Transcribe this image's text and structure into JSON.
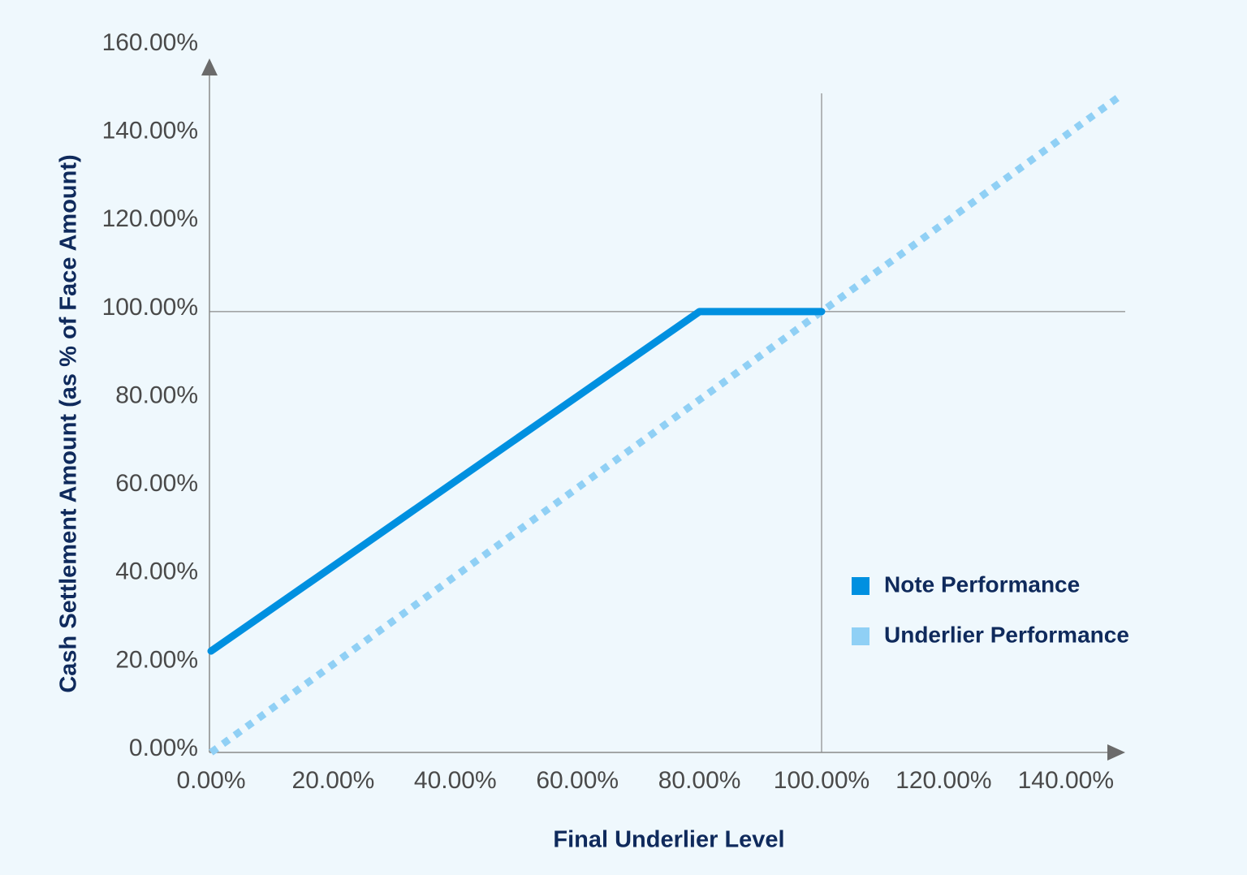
{
  "chart_data": {
    "type": "line",
    "x_label": "Final Underlier Level",
    "y_label": "Cash Settlement Amount (as % of Face Amount)",
    "xlim": [
      0,
      150
    ],
    "ylim": [
      0,
      160
    ],
    "xticks": [
      {
        "value": 0,
        "label": "0.00%"
      },
      {
        "value": 20,
        "label": "20.00%"
      },
      {
        "value": 40,
        "label": "40.00%"
      },
      {
        "value": 60,
        "label": "60.00%"
      },
      {
        "value": 80,
        "label": "80.00%"
      },
      {
        "value": 100,
        "label": "100.00%"
      },
      {
        "value": 120,
        "label": "120.00%"
      },
      {
        "value": 140,
        "label": "140.00%"
      }
    ],
    "yticks": [
      {
        "value": 0,
        "label": "0.00%"
      },
      {
        "value": 20,
        "label": "20.00%"
      },
      {
        "value": 40,
        "label": "40.00%"
      },
      {
        "value": 60,
        "label": "60.00%"
      },
      {
        "value": 80,
        "label": "80.00%"
      },
      {
        "value": 100,
        "label": "100.00%"
      },
      {
        "value": 120,
        "label": "120.00%"
      },
      {
        "value": 140,
        "label": "140.00%"
      },
      {
        "value": 160,
        "label": "160.00%"
      }
    ],
    "reference_lines": {
      "x": 100,
      "y": 100
    },
    "series": [
      {
        "name": "Note Performance",
        "color": "#0090e0",
        "style": "solid",
        "x": [
          0,
          80,
          100
        ],
        "values": [
          23,
          100,
          100
        ]
      },
      {
        "name": "Underlier Performance",
        "color": "#90d0f5",
        "style": "dotted",
        "x": [
          0,
          149
        ],
        "values": [
          0,
          149
        ]
      }
    ]
  }
}
